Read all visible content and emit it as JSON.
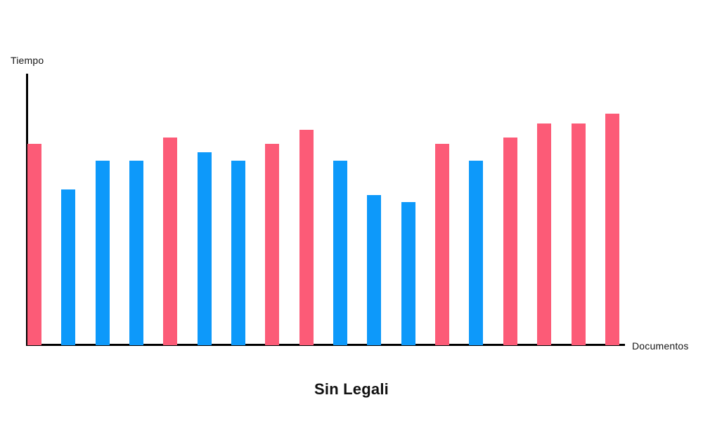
{
  "page": {
    "background": "#ffffff"
  },
  "colors": {
    "pink": "#fc5b77",
    "blue": "#0d99fa",
    "axis": "#000000",
    "text": "#161616"
  },
  "chart_data": {
    "type": "bar",
    "title": "Sin Legali",
    "xlabel": "Documentos",
    "ylabel": "Tiempo",
    "ylim": [
      0,
      100
    ],
    "grid": false,
    "tick_labels": "none",
    "legend": "none",
    "note": "values are relative bar heights (percent of plot height); no numeric scale shown in image",
    "bars": [
      {
        "series": "pink",
        "value": 74.4
      },
      {
        "series": "blue",
        "value": 57.5
      },
      {
        "series": "blue",
        "value": 68.1
      },
      {
        "series": "blue",
        "value": 68.1
      },
      {
        "series": "pink",
        "value": 76.7
      },
      {
        "series": "blue",
        "value": 71.2
      },
      {
        "series": "blue",
        "value": 68.1
      },
      {
        "series": "pink",
        "value": 74.4
      },
      {
        "series": "pink",
        "value": 79.5
      },
      {
        "series": "blue",
        "value": 68.1
      },
      {
        "series": "blue",
        "value": 55.4
      },
      {
        "series": "blue",
        "value": 52.8
      },
      {
        "series": "pink",
        "value": 74.4
      },
      {
        "series": "blue",
        "value": 68.1
      },
      {
        "series": "pink",
        "value": 76.7
      },
      {
        "series": "pink",
        "value": 81.9
      },
      {
        "series": "pink",
        "value": 81.9
      },
      {
        "series": "pink",
        "value": 85.5
      }
    ]
  }
}
